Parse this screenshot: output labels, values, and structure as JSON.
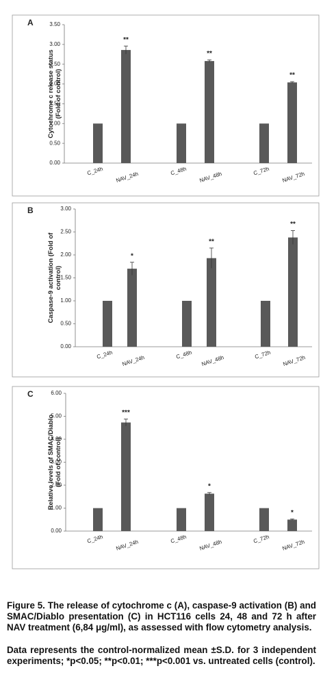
{
  "chart_data": [
    {
      "type": "bar",
      "panel": "A",
      "ylabel": [
        "Cytochrome c release status",
        "(Fold of control)"
      ],
      "categories": [
        "C_24h",
        "NAV_24h",
        "C_48h",
        "NAV_48h",
        "C_72h",
        "NAV_72h"
      ],
      "values": [
        1,
        2.86,
        1,
        2.58,
        1,
        2.04
      ],
      "errors": [
        0,
        0.1,
        0,
        0.03,
        0,
        0.02
      ],
      "annotations": [
        null,
        "**",
        null,
        "**",
        null,
        "**"
      ],
      "color": "#595959",
      "ylim": [
        0,
        3.5
      ],
      "yticks": [
        {
          "value": 0,
          "label": "0.00"
        },
        {
          "value": 0.5,
          "label": "0.50"
        },
        {
          "value": 1,
          "label": "1.00"
        },
        {
          "value": 1.5,
          "label": "1.50"
        },
        {
          "value": 2,
          "label": "2.00"
        },
        {
          "value": 2.5,
          "label": "2.50"
        },
        {
          "value": 3,
          "label": "3.00"
        },
        {
          "value": 3.5,
          "label": "3.50"
        }
      ]
    },
    {
      "type": "bar",
      "panel": "B",
      "ylabel": [
        "Caspase-9 activation (Fold of",
        "control)"
      ],
      "categories": [
        "C_24h",
        "NAV_24h",
        "C_48h",
        "NAV_48h",
        "C_72h",
        "NAV_72h"
      ],
      "values": [
        1,
        1.7,
        1,
        1.93,
        1,
        2.38
      ],
      "errors": [
        0,
        0.14,
        0,
        0.22,
        0,
        0.15
      ],
      "annotations": [
        null,
        "*",
        null,
        "**",
        null,
        "**"
      ],
      "color": "#595959",
      "ylim": [
        0,
        3
      ],
      "yticks": [
        {
          "value": 0,
          "label": "0.00"
        },
        {
          "value": 0.5,
          "label": "0.50"
        },
        {
          "value": 1,
          "label": "1.00"
        },
        {
          "value": 1.5,
          "label": "1.50"
        },
        {
          "value": 2,
          "label": "2.00"
        },
        {
          "value": 2.5,
          "label": "2.50"
        },
        {
          "value": 3,
          "label": "3.00"
        }
      ]
    },
    {
      "type": "bar",
      "panel": "C",
      "ylabel": [
        "Relative levels of SMAC/Diablo",
        "(Fold of control)"
      ],
      "categories": [
        "C_24h",
        "NAV_24h",
        "C_48h",
        "NAV_48h",
        "C_72h",
        "NAV_72h"
      ],
      "values": [
        1,
        4.73,
        1,
        1.63,
        1,
        0.5
      ],
      "errors": [
        0,
        0.15,
        0,
        0.05,
        0,
        0.03
      ],
      "annotations": [
        null,
        "***",
        null,
        "*",
        null,
        "*"
      ],
      "color": "#595959",
      "ylim": [
        0,
        6
      ],
      "yticks": [
        {
          "value": 0,
          "label": "0.00"
        },
        {
          "value": 1,
          "label": "1.00"
        },
        {
          "value": 2,
          "label": "2.00"
        },
        {
          "value": 3,
          "label": "3.00"
        },
        {
          "value": 4,
          "label": "4.00"
        },
        {
          "value": 5,
          "label": "5.00"
        },
        {
          "value": 6,
          "label": "6.00"
        }
      ]
    }
  ],
  "caption": {
    "figure": "Figure 5. The release of cytochrome c (A), caspase-9 activation (B) and SMAC/Diablo presentation (C) in HCT116 cells 24, 48 and 72 h after NAV treatment (6,84 μg/ml), as assessed with flow cytometry analysis.",
    "note": "Data represents the control-normalized mean ±S.D. for 3 independent experiments; *p<0.05; **p<0.01; ***p<0.001 vs. untreated cells (control)."
  }
}
